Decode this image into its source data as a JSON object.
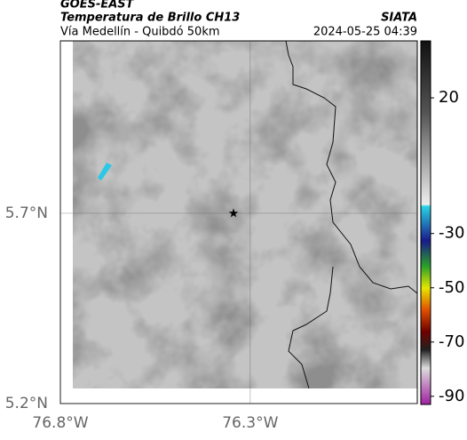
{
  "header": {
    "title": "GOES-EAST",
    "subtitle": "Temperatura de Brillo CH13",
    "source": "SIATA",
    "region": "Vía Medellín - Quibdó 50km",
    "timestamp": "2024-05-25 04:39"
  },
  "map": {
    "xlim": [
      -76.8,
      -75.86
    ],
    "ylim": [
      5.2,
      6.153
    ],
    "xticks": [
      {
        "value": -76.8,
        "label": "76.8°W"
      },
      {
        "value": -76.3,
        "label": "76.3°W"
      }
    ],
    "yticks": [
      {
        "value": 5.7,
        "label": "5.7°N"
      },
      {
        "value": 5.2,
        "label": "5.2°N"
      }
    ],
    "grid": true,
    "marker": {
      "lon": -76.344,
      "lat": 5.7
    }
  },
  "colorbar": {
    "lim": [
      -93,
      41
    ],
    "ticks": [
      20,
      -30,
      -50,
      -70,
      -90
    ]
  }
}
